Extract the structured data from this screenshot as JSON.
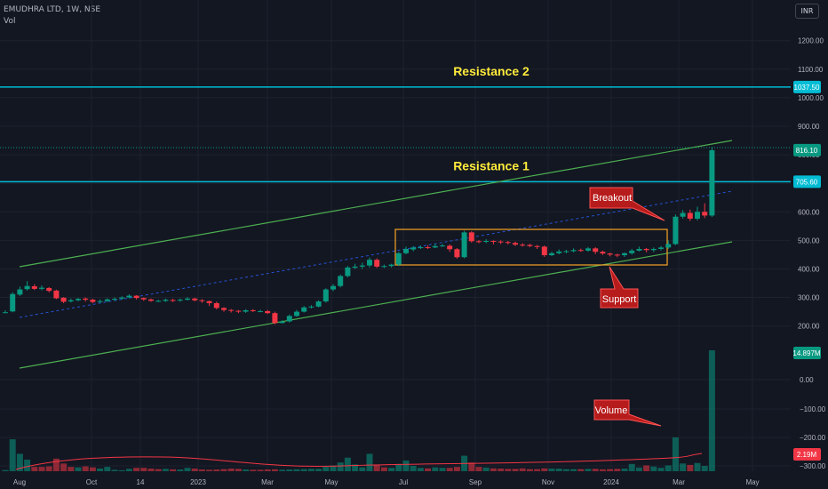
{
  "header": {
    "symbol_line": "EMUDHRA LTD, 1W, NSE",
    "volume_label": "Vol",
    "currency_button": "INR"
  },
  "chart_data": {
    "type": "candlestick",
    "y_ticks": [
      "1200.00",
      "1100.00",
      "1000.00",
      "900.00",
      "800.00",
      "700.00",
      "600.00",
      "500.00",
      "400.00",
      "300.00",
      "200.00"
    ],
    "vol_ticks": [
      "0.00",
      "−100.00",
      "−200.00",
      "−300.00"
    ],
    "x_ticks": [
      "Aug",
      "Oct",
      "14",
      "2023",
      "Mar",
      "May",
      "Jul",
      "Sep",
      "Nov",
      "2024",
      "Mar",
      "May"
    ],
    "ylim": [
      170,
      1240
    ],
    "price_badges": [
      {
        "text": "1037.50",
        "color": "#00bcd4"
      },
      {
        "text": "816.10",
        "color": "#089981"
      },
      {
        "text": "705.60",
        "color": "#00bcd4"
      }
    ],
    "volume_badges": [
      {
        "text": "14.897M",
        "color": "#089981"
      },
      {
        "text": "2.19M",
        "color": "#f23645"
      }
    ],
    "horizontal_lines": [
      {
        "label": "Resistance 2",
        "price": 1037.5
      },
      {
        "label": "Resistance 1",
        "price": 705.6
      }
    ],
    "annotations": [
      "Breakout",
      "Support",
      "Volume"
    ],
    "candles": [
      [
        248,
        248,
        255,
        245
      ],
      [
        251,
        312,
        318,
        248
      ],
      [
        310,
        328,
        338,
        305
      ],
      [
        329,
        340,
        357,
        324
      ],
      [
        339,
        330,
        346,
        326
      ],
      [
        330,
        334,
        342,
        325
      ],
      [
        333,
        323,
        336,
        318
      ],
      [
        324,
        297,
        327,
        294
      ],
      [
        299,
        285,
        301,
        280
      ],
      [
        286,
        290,
        296,
        282
      ],
      [
        290,
        295,
        298,
        287
      ],
      [
        296,
        292,
        300,
        285
      ],
      [
        292,
        284,
        295,
        280
      ],
      [
        285,
        287,
        293,
        281
      ],
      [
        287,
        293,
        297,
        285
      ],
      [
        293,
        295,
        300,
        288
      ],
      [
        296,
        300,
        304,
        292
      ],
      [
        300,
        306,
        311,
        297
      ],
      [
        306,
        298,
        308,
        293
      ],
      [
        298,
        293,
        300,
        288
      ],
      [
        293,
        288,
        296,
        285
      ],
      [
        288,
        288,
        292,
        284
      ],
      [
        288,
        292,
        296,
        284
      ],
      [
        291,
        289,
        295,
        284
      ],
      [
        289,
        292,
        296,
        285
      ],
      [
        292,
        296,
        301,
        289
      ],
      [
        296,
        290,
        299,
        286
      ],
      [
        290,
        287,
        294,
        281
      ],
      [
        287,
        280,
        289,
        270
      ],
      [
        280,
        263,
        285,
        258
      ],
      [
        263,
        256,
        266,
        250
      ],
      [
        256,
        253,
        259,
        247
      ],
      [
        253,
        250,
        256,
        245
      ],
      [
        250,
        255,
        259,
        246
      ],
      [
        255,
        252,
        259,
        249
      ],
      [
        252,
        252,
        257,
        248
      ],
      [
        252,
        245,
        256,
        242
      ],
      [
        245,
        210,
        250,
        206
      ],
      [
        210,
        215,
        220,
        210
      ],
      [
        216,
        235,
        240,
        212
      ],
      [
        235,
        250,
        256,
        232
      ],
      [
        250,
        265,
        270,
        247
      ],
      [
        265,
        268,
        273,
        261
      ],
      [
        268,
        286,
        290,
        265
      ],
      [
        286,
        328,
        332,
        282
      ],
      [
        328,
        340,
        347,
        322
      ],
      [
        340,
        375,
        380,
        335
      ],
      [
        375,
        405,
        410,
        370
      ],
      [
        404,
        408,
        418,
        400
      ],
      [
        408,
        412,
        422,
        400
      ],
      [
        412,
        432,
        440,
        405
      ],
      [
        432,
        408,
        437,
        403
      ],
      [
        408,
        410,
        415,
        403
      ],
      [
        410,
        415,
        418,
        405
      ],
      [
        415,
        455,
        460,
        410
      ],
      [
        455,
        470,
        478,
        451
      ],
      [
        468,
        475,
        480,
        462
      ],
      [
        475,
        476,
        482,
        470
      ],
      [
        476,
        475,
        483,
        470
      ],
      [
        475,
        480,
        488,
        473
      ],
      [
        480,
        482,
        488,
        477
      ],
      [
        481,
        469,
        486,
        460
      ],
      [
        469,
        441,
        473,
        436
      ],
      [
        441,
        528,
        534,
        437
      ],
      [
        528,
        497,
        532,
        492
      ],
      [
        497,
        495,
        501,
        490
      ],
      [
        495,
        498,
        504,
        490
      ],
      [
        498,
        496,
        500,
        486
      ],
      [
        496,
        494,
        500,
        487
      ],
      [
        494,
        491,
        498,
        486
      ],
      [
        491,
        485,
        496,
        480
      ],
      [
        485,
        484,
        490,
        478
      ],
      [
        484,
        480,
        488,
        476
      ],
      [
        480,
        478,
        484,
        470
      ],
      [
        478,
        448,
        482,
        442
      ],
      [
        448,
        455,
        460,
        445
      ],
      [
        455,
        461,
        468,
        451
      ],
      [
        461,
        462,
        467,
        455
      ],
      [
        462,
        466,
        472,
        458
      ],
      [
        466,
        464,
        471,
        460
      ],
      [
        464,
        472,
        477,
        460
      ],
      [
        472,
        460,
        476,
        452
      ],
      [
        460,
        454,
        464,
        449
      ],
      [
        454,
        450,
        456,
        444
      ],
      [
        450,
        448,
        453,
        441
      ],
      [
        448,
        455,
        458,
        442
      ],
      [
        455,
        464,
        470,
        450
      ],
      [
        464,
        470,
        478,
        461
      ],
      [
        470,
        466,
        473,
        458
      ],
      [
        466,
        470,
        475,
        459
      ],
      [
        470,
        475,
        480,
        465
      ],
      [
        475,
        487,
        500,
        470
      ],
      [
        487,
        583,
        591,
        483
      ],
      [
        583,
        596,
        606,
        576
      ],
      [
        596,
        576,
        608,
        568
      ],
      [
        576,
        600,
        618,
        570
      ],
      [
        600,
        587,
        630,
        578
      ],
      [
        587,
        816,
        828,
        582
      ]
    ],
    "volumes": [
      [
        12,
        "#089981"
      ],
      [
        330,
        "#089981"
      ],
      [
        180,
        "#089981"
      ],
      [
        120,
        "#089981"
      ],
      [
        45,
        "#f23645"
      ],
      [
        45,
        "#f23645"
      ],
      [
        50,
        "#f23645"
      ],
      [
        130,
        "#f23645"
      ],
      [
        80,
        "#f23645"
      ],
      [
        45,
        "#f23645"
      ],
      [
        40,
        "#089981"
      ],
      [
        50,
        "#f23645"
      ],
      [
        40,
        "#f23645"
      ],
      [
        28,
        "#089981"
      ],
      [
        45,
        "#089981"
      ],
      [
        15,
        "#089981"
      ],
      [
        10,
        "#089981"
      ],
      [
        25,
        "#089981"
      ],
      [
        35,
        "#f23645"
      ],
      [
        35,
        "#f23645"
      ],
      [
        28,
        "#f23645"
      ],
      [
        22,
        "#f23645"
      ],
      [
        25,
        "#089981"
      ],
      [
        20,
        "#f23645"
      ],
      [
        18,
        "#089981"
      ],
      [
        35,
        "#089981"
      ],
      [
        28,
        "#f23645"
      ],
      [
        18,
        "#f23645"
      ],
      [
        15,
        "#f23645"
      ],
      [
        18,
        "#f23645"
      ],
      [
        22,
        "#f23645"
      ],
      [
        28,
        "#f23645"
      ],
      [
        25,
        "#f23645"
      ],
      [
        18,
        "#089981"
      ],
      [
        15,
        "#f23645"
      ],
      [
        15,
        "#f23645"
      ],
      [
        18,
        "#f23645"
      ],
      [
        20,
        "#f23645"
      ],
      [
        15,
        "#089981"
      ],
      [
        18,
        "#089981"
      ],
      [
        20,
        "#089981"
      ],
      [
        22,
        "#089981"
      ],
      [
        25,
        "#089981"
      ],
      [
        25,
        "#089981"
      ],
      [
        45,
        "#089981"
      ],
      [
        60,
        "#089981"
      ],
      [
        90,
        "#089981"
      ],
      [
        140,
        "#089981"
      ],
      [
        70,
        "#089981"
      ],
      [
        40,
        "#089981"
      ],
      [
        180,
        "#089981"
      ],
      [
        60,
        "#f23645"
      ],
      [
        40,
        "#f23645"
      ],
      [
        35,
        "#089981"
      ],
      [
        75,
        "#089981"
      ],
      [
        110,
        "#089981"
      ],
      [
        55,
        "#089981"
      ],
      [
        35,
        "#089981"
      ],
      [
        30,
        "#f23645"
      ],
      [
        40,
        "#089981"
      ],
      [
        35,
        "#089981"
      ],
      [
        35,
        "#f23645"
      ],
      [
        45,
        "#f23645"
      ],
      [
        160,
        "#089981"
      ],
      [
        90,
        "#f23645"
      ],
      [
        45,
        "#f23645"
      ],
      [
        38,
        "#089981"
      ],
      [
        30,
        "#f23645"
      ],
      [
        28,
        "#f23645"
      ],
      [
        25,
        "#f23645"
      ],
      [
        25,
        "#f23645"
      ],
      [
        30,
        "#f23645"
      ],
      [
        22,
        "#f23645"
      ],
      [
        22,
        "#f23645"
      ],
      [
        30,
        "#f23645"
      ],
      [
        28,
        "#089981"
      ],
      [
        28,
        "#089981"
      ],
      [
        22,
        "#089981"
      ],
      [
        22,
        "#089981"
      ],
      [
        22,
        "#f23645"
      ],
      [
        25,
        "#089981"
      ],
      [
        25,
        "#f23645"
      ],
      [
        20,
        "#f23645"
      ],
      [
        22,
        "#f23645"
      ],
      [
        25,
        "#f23645"
      ],
      [
        28,
        "#089981"
      ],
      [
        75,
        "#089981"
      ],
      [
        38,
        "#089981"
      ],
      [
        60,
        "#f23645"
      ],
      [
        48,
        "#089981"
      ],
      [
        35,
        "#089981"
      ],
      [
        60,
        "#089981"
      ],
      [
        350,
        "#089981"
      ],
      [
        80,
        "#089981"
      ],
      [
        65,
        "#f23645"
      ],
      [
        85,
        "#089981"
      ],
      [
        55,
        "#089981"
      ],
      [
        1250,
        "#089981"
      ]
    ]
  }
}
